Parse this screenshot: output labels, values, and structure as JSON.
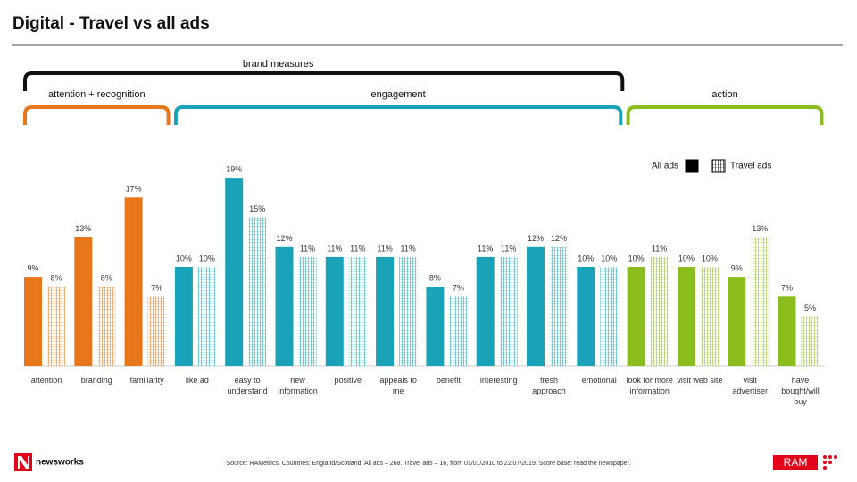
{
  "title": "Digital - Travel vs all ads",
  "chart_data": {
    "type": "bar",
    "categories": [
      "attention",
      "branding",
      "familiarity",
      "like ad",
      "easy to understand",
      "new information",
      "positive",
      "appeals to me",
      "benefit",
      "interesting",
      "fresh approach",
      "emotional",
      "look for more information",
      "visit web site",
      "visit advertiser",
      "have bought/will buy"
    ],
    "group_title": "brand measures",
    "groups": [
      {
        "name": "attention + recognition",
        "start": 0,
        "end": 2,
        "color": "#e8761b"
      },
      {
        "name": "engagement",
        "start": 3,
        "end": 11,
        "color": "#1aa3b8"
      },
      {
        "name": "action",
        "start": 12,
        "end": 15,
        "color": "#8cbd1e"
      }
    ],
    "series": [
      {
        "name": "All ads",
        "color": "#000000",
        "hatched": false,
        "values": [
          9,
          13,
          17,
          10,
          19,
          12,
          11,
          11,
          8,
          11,
          12,
          10,
          10,
          10,
          9,
          7
        ],
        "value_labels": [
          "9%",
          "13%",
          "17%",
          "10%",
          "19%",
          "12%",
          "11%",
          "11%",
          "8%",
          "11%",
          "12%",
          "10%",
          "10%",
          "10%",
          "9%",
          "7%"
        ]
      },
      {
        "name": "Travel ads",
        "color": "#000000",
        "hatched": true,
        "values": [
          8,
          8,
          7,
          10,
          15,
          11,
          11,
          11,
          7,
          11,
          12,
          10,
          11,
          10,
          13,
          5
        ],
        "value_labels": [
          "8%",
          "8%",
          "7%",
          "10%",
          "15%",
          "11%",
          "11%",
          "11%",
          "7%",
          "11%",
          "12%",
          "10%",
          "11%",
          "10%",
          "13%",
          "5%"
        ]
      }
    ],
    "ylim": [
      0,
      20
    ],
    "legend": "top-right"
  },
  "footer": {
    "logo_left": "newsworks",
    "source": "Source: RAMetrics. Countries: England/Scotland. All ads – 268. Travel ads – 16, from 01/01/2010 to 22/07/2019. Score base: read the newspaper.",
    "logo_right": "RAM"
  }
}
